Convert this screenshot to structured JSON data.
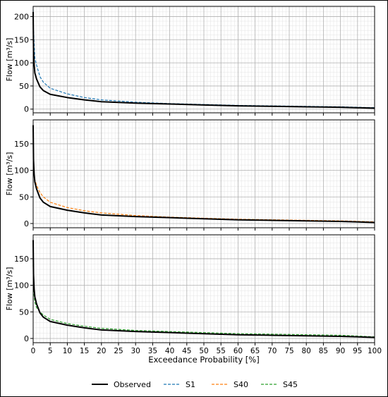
{
  "colors": {
    "observed": "#000000",
    "s1": "#1f77b4",
    "s40": "#ff7f0e",
    "s45": "#2ca02c",
    "grid_major": "#b0b0b0",
    "grid_minor": "#e3e3e3",
    "frame": "#000000"
  },
  "legend": {
    "items": [
      {
        "label": "Observed",
        "color": "#000000",
        "style": "solid"
      },
      {
        "label": "S1",
        "color": "#1f77b4",
        "style": "dashed"
      },
      {
        "label": "S40",
        "color": "#ff7f0e",
        "style": "dashed"
      },
      {
        "label": "S45",
        "color": "#2ca02c",
        "style": "dashed"
      }
    ],
    "placement": "bottom-center"
  },
  "chart_data": [
    {
      "type": "line",
      "ylabel": "Flow [m³/s]",
      "xlabel": "",
      "xlim": [
        0,
        100
      ],
      "ylim": [
        -8,
        222
      ],
      "xticks": [
        0,
        5,
        10,
        15,
        20,
        25,
        30,
        35,
        40,
        45,
        50,
        55,
        60,
        65,
        70,
        75,
        80,
        85,
        90,
        95,
        100
      ],
      "show_xtick_labels": false,
      "yticks": [
        0,
        50,
        100,
        150,
        200
      ],
      "grid": true,
      "x": [
        0,
        0.1,
        0.3,
        0.5,
        1,
        2,
        3,
        5,
        10,
        15,
        20,
        30,
        40,
        50,
        60,
        70,
        80,
        90,
        100
      ],
      "series": [
        {
          "name": "Observed",
          "color": "#000000",
          "style": "solid",
          "values": [
            210,
            130,
            95,
            78,
            65,
            48,
            40,
            32,
            25,
            20,
            16,
            13,
            11,
            9,
            7,
            6,
            5,
            4,
            2
          ]
        },
        {
          "name": "S1",
          "color": "#1f77b4",
          "style": "dashed",
          "values": [
            215,
            170,
            140,
            110,
            95,
            70,
            58,
            45,
            33,
            25,
            20,
            15,
            12,
            10,
            8,
            7,
            6,
            5,
            3
          ]
        }
      ]
    },
    {
      "type": "line",
      "ylabel": "Flow [m³/s]",
      "xlabel": "",
      "xlim": [
        0,
        100
      ],
      "ylim": [
        -8,
        195
      ],
      "xticks": [
        0,
        5,
        10,
        15,
        20,
        25,
        30,
        35,
        40,
        45,
        50,
        55,
        60,
        65,
        70,
        75,
        80,
        85,
        90,
        95,
        100
      ],
      "show_xtick_labels": false,
      "yticks": [
        0,
        50,
        100,
        150
      ],
      "grid": true,
      "x": [
        0,
        0.1,
        0.3,
        0.5,
        1,
        2,
        3,
        5,
        10,
        15,
        20,
        30,
        40,
        50,
        60,
        70,
        80,
        90,
        100
      ],
      "series": [
        {
          "name": "Observed",
          "color": "#000000",
          "style": "solid",
          "values": [
            185,
            120,
            92,
            78,
            65,
            48,
            40,
            32,
            25,
            20,
            16,
            13,
            11,
            9,
            7,
            6,
            5,
            4,
            2
          ]
        },
        {
          "name": "S40",
          "color": "#ff7f0e",
          "style": "dashed",
          "values": [
            165,
            110,
            92,
            82,
            72,
            58,
            50,
            40,
            30,
            24,
            20,
            15,
            12,
            10,
            8,
            7,
            6,
            5,
            3
          ]
        }
      ]
    },
    {
      "type": "line",
      "ylabel": "Flow [m³/s]",
      "xlabel": "Exceedance Probability [%]",
      "xlim": [
        0,
        100
      ],
      "ylim": [
        -8,
        195
      ],
      "xticks": [
        0,
        5,
        10,
        15,
        20,
        25,
        30,
        35,
        40,
        45,
        50,
        55,
        60,
        65,
        70,
        75,
        80,
        85,
        90,
        95,
        100
      ],
      "show_xtick_labels": true,
      "yticks": [
        0,
        50,
        100,
        150
      ],
      "grid": true,
      "x": [
        0,
        0.1,
        0.3,
        0.5,
        1,
        2,
        3,
        5,
        10,
        15,
        20,
        30,
        40,
        50,
        60,
        70,
        80,
        90,
        100
      ],
      "series": [
        {
          "name": "Observed",
          "color": "#000000",
          "style": "solid",
          "values": [
            185,
            120,
            92,
            78,
            65,
            48,
            40,
            32,
            25,
            20,
            16,
            13,
            11,
            9,
            7,
            6,
            5,
            4,
            2
          ]
        },
        {
          "name": "S45",
          "color": "#2ca02c",
          "style": "dashed",
          "values": [
            140,
            95,
            78,
            68,
            58,
            50,
            44,
            36,
            28,
            23,
            19,
            15,
            13,
            11,
            9,
            8,
            7,
            6,
            3
          ]
        }
      ]
    }
  ]
}
